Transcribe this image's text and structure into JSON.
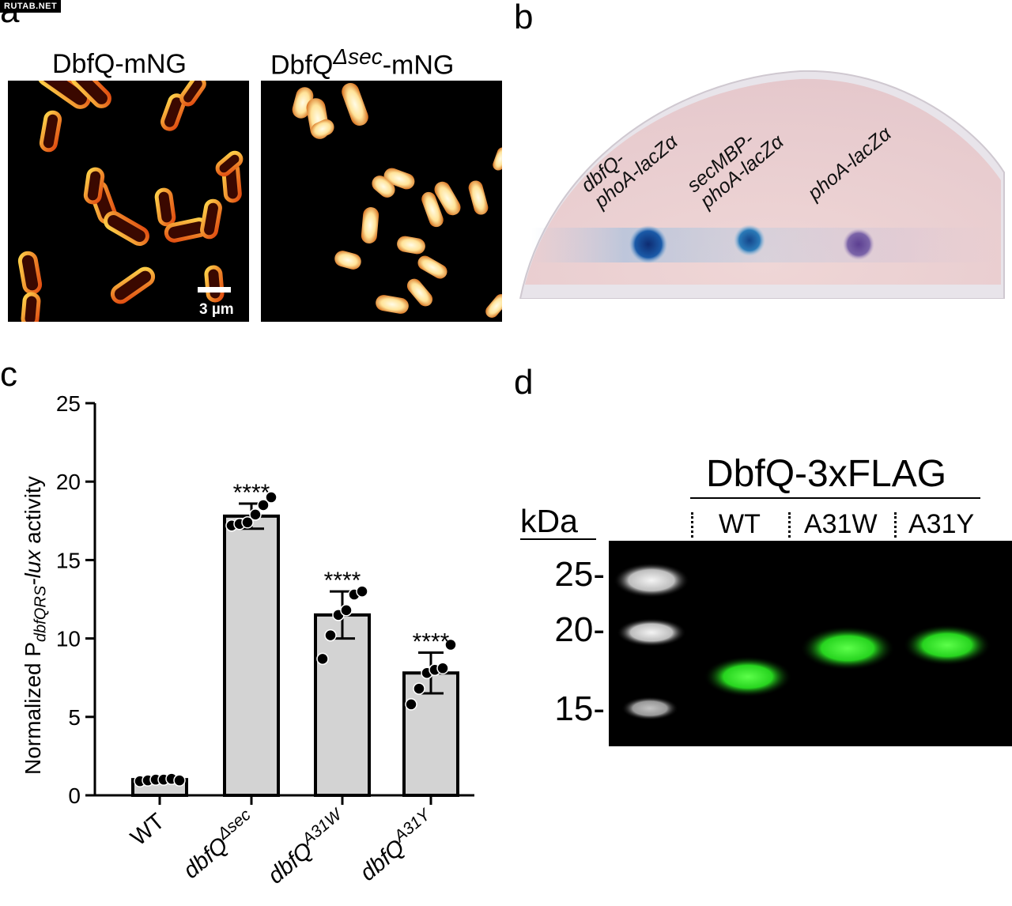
{
  "watermark": "RUTAB.NET",
  "panels": {
    "a": {
      "letter": "a",
      "left_title": "DbfQ-mNG",
      "right_title_prefix": "DbfQ",
      "right_title_sup": "Δsec",
      "right_title_suffix": "-mNG",
      "scale_bar": "3 µm"
    },
    "b": {
      "letter": "b",
      "spots": [
        {
          "line1": "dbfQ-",
          "line2": "phoA-lacZα",
          "color": "#1c4d99"
        },
        {
          "line1": "secMBP-",
          "line2": "phoA-lacZα",
          "color": "#1f6aa8"
        },
        {
          "line1": "",
          "line2": "phoA-lacZα",
          "color": "#6f5a9e"
        }
      ]
    },
    "c": {
      "letter": "c",
      "ylabel_prefix": "Normalized P",
      "ylabel_sub": "dbfQRS",
      "ylabel_suffix_italic": "-lux",
      "ylabel_suffix": " activity"
    },
    "d": {
      "letter": "d",
      "title": "DbfQ-3xFLAG",
      "kda": "kDa",
      "lanes": [
        "WT",
        "A31W",
        "A31Y"
      ],
      "mw_markers": [
        "25-",
        "20-",
        "15-"
      ]
    }
  },
  "chart_data": {
    "type": "bar",
    "categories": [
      "WT",
      "dbfQ Δsec",
      "dbfQ A31W",
      "dbfQ A31Y"
    ],
    "tick_labels": [
      {
        "base": "WT",
        "sup": ""
      },
      {
        "base": "dbfQ",
        "sup": "Δsec"
      },
      {
        "base": "dbfQ",
        "sup": "A31W"
      },
      {
        "base": "dbfQ",
        "sup": "A31Y"
      }
    ],
    "values": [
      1.0,
      17.8,
      11.5,
      7.8
    ],
    "errors": [
      0.1,
      0.8,
      1.5,
      1.3
    ],
    "points": [
      [
        0.9,
        0.95,
        1.0,
        1.0,
        1.05,
        0.95
      ],
      [
        17.2,
        17.3,
        17.4,
        17.9,
        18.5,
        19.0
      ],
      [
        8.7,
        10.2,
        11.5,
        11.8,
        12.8,
        13.0
      ],
      [
        5.8,
        6.8,
        7.8,
        8.0,
        8.1,
        9.6
      ]
    ],
    "significance": [
      "",
      "****",
      "****",
      "****"
    ],
    "ylim": [
      0,
      25
    ],
    "yticks": [
      0,
      5,
      10,
      15,
      20,
      25
    ],
    "bar_color": "#d3d3d3",
    "grid": false
  }
}
